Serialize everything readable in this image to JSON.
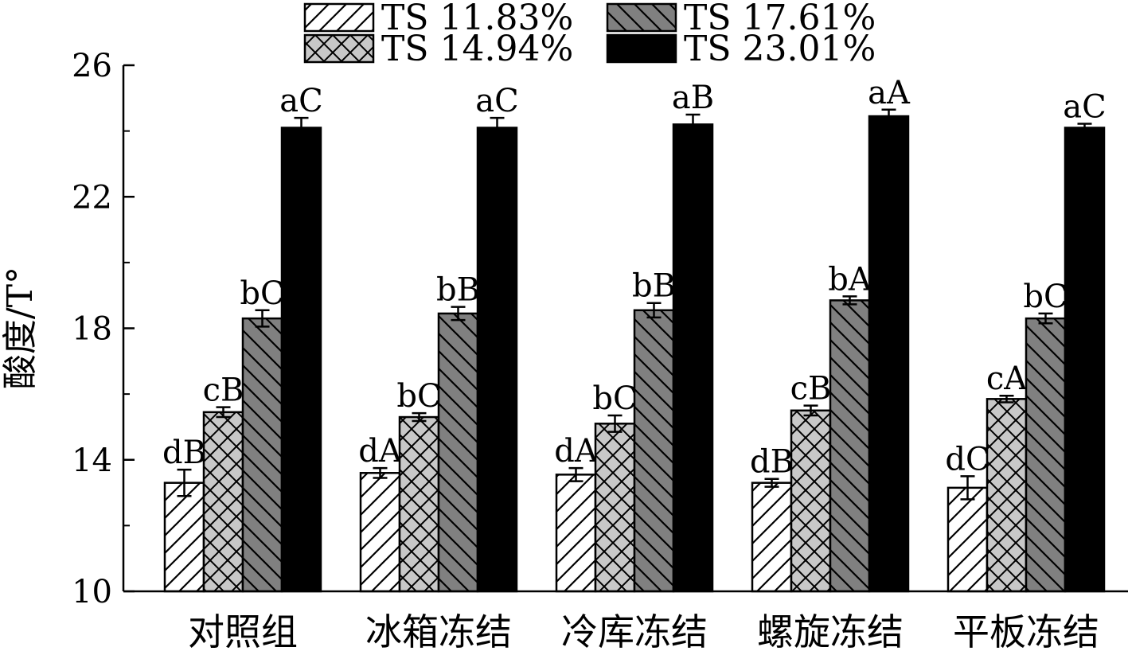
{
  "chart_data": {
    "type": "bar",
    "ylabel": "酸度/T°",
    "ylim": [
      10,
      26
    ],
    "yticks": [
      10,
      14,
      18,
      22,
      26
    ],
    "categories": [
      "对照组",
      "冰箱冻结",
      "冷库冻结",
      "螺旋冻结",
      "平板冻结"
    ],
    "legend": {
      "placement": "top",
      "columns": 2
    },
    "series": [
      {
        "name": "TS 11.83%",
        "pattern": "diag-up",
        "color": "#ffffff",
        "values": [
          13.3,
          13.6,
          13.55,
          13.3,
          13.15
        ],
        "errors": [
          0.4,
          0.15,
          0.2,
          0.12,
          0.35
        ],
        "labels": [
          "dB",
          "dA",
          "dA",
          "dB",
          "dC"
        ]
      },
      {
        "name": "TS 14.94%",
        "pattern": "crosshatch",
        "color": "#c8c8c8",
        "values": [
          15.45,
          15.3,
          15.1,
          15.5,
          15.85
        ],
        "errors": [
          0.15,
          0.12,
          0.25,
          0.15,
          0.1
        ],
        "labels": [
          "cB",
          "bC",
          "bC",
          "cB",
          "cA"
        ]
      },
      {
        "name": "TS 17.61%",
        "pattern": "diag-down",
        "color": "#808080",
        "values": [
          18.3,
          18.45,
          18.55,
          18.85,
          18.3
        ],
        "errors": [
          0.25,
          0.2,
          0.22,
          0.12,
          0.15
        ],
        "labels": [
          "bC",
          "bB",
          "bB",
          "bA",
          "bC"
        ]
      },
      {
        "name": "TS 23.01%",
        "pattern": "solid",
        "color": "#000000",
        "values": [
          24.1,
          24.1,
          24.2,
          24.45,
          24.1
        ],
        "errors": [
          0.3,
          0.3,
          0.3,
          0.2,
          0.12
        ],
        "labels": [
          "aC",
          "aC",
          "aB",
          "aA",
          "aC"
        ]
      }
    ]
  }
}
